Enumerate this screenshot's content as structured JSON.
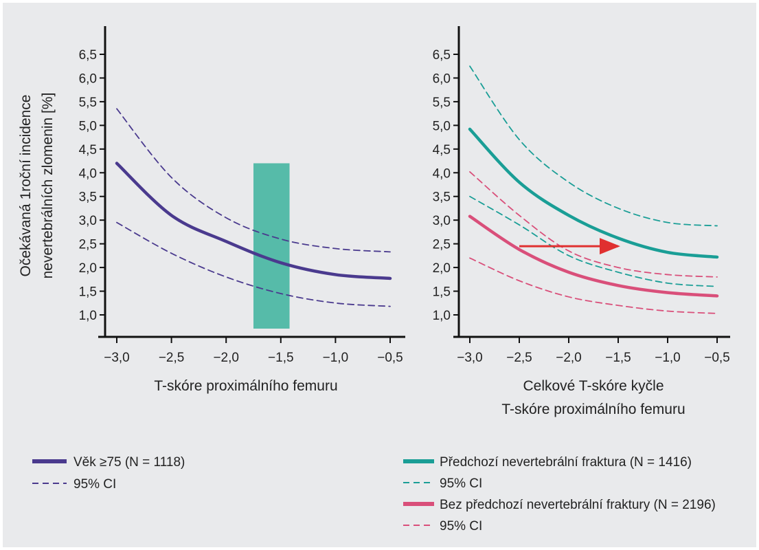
{
  "chart_data": [
    {
      "type": "line",
      "ylabel_lines": [
        "Očekávaná 1roční incidence",
        "nevertebrálních zlomenin [%]"
      ],
      "xlabel_lines": [
        "T-skóre proximálního femuru"
      ],
      "xlim": [
        -3.0,
        -0.5
      ],
      "ylim": [
        1.0,
        6.5
      ],
      "xticks": [
        "−3,0",
        "−2,5",
        "−2,0",
        "−1,5",
        "−1,0",
        "−0,5"
      ],
      "yticks": [
        "1,0",
        "1,5",
        "2,0",
        "2,5",
        "3,0",
        "3,5",
        "4,0",
        "4,5",
        "5,0",
        "5,5",
        "6,0",
        "6,5"
      ],
      "x": [
        -3.0,
        -2.5,
        -2.0,
        -1.5,
        -1.0,
        -0.5
      ],
      "series": [
        {
          "name": "Věk ≥75 (N = 1118)",
          "style": "solid",
          "color": "#4a3a8e",
          "values": [
            4.2,
            3.1,
            2.55,
            2.1,
            1.85,
            1.77
          ]
        },
        {
          "name": "95% CI",
          "style": "dashed",
          "color": "#4a3a8e",
          "values": [
            5.35,
            3.9,
            3.05,
            2.6,
            2.4,
            2.33
          ]
        },
        {
          "name": "95% CI",
          "style": "dashed",
          "color": "#4a3a8e",
          "values": [
            2.95,
            2.3,
            1.8,
            1.45,
            1.25,
            1.18
          ]
        }
      ],
      "highlight_band": {
        "x_from": -1.75,
        "x_to": -1.42,
        "y_to": 4.2,
        "color": "#56bba9"
      },
      "legend": [
        {
          "label": "Věk ≥75 (N = 1118)",
          "style": "solid",
          "color": "#4a3a8e"
        },
        {
          "label": "95% CI",
          "style": "dashed",
          "color": "#4a3a8e"
        }
      ]
    },
    {
      "type": "line",
      "xlabel_lines": [
        "Celkové T-skóre kyčle",
        "T-skóre proximálního femuru"
      ],
      "xlim": [
        -3.0,
        -0.5
      ],
      "ylim": [
        1.0,
        6.5
      ],
      "xticks": [
        "−3,0",
        "−2,5",
        "−2,0",
        "−1,5",
        "−1,0",
        "−0,5"
      ],
      "yticks": [
        "1,0",
        "1,5",
        "2,0",
        "2,5",
        "3,0",
        "3,5",
        "4,0",
        "4,5",
        "5,0",
        "5,5",
        "6,0",
        "6,5"
      ],
      "x": [
        -3.0,
        -2.5,
        -2.0,
        -1.5,
        -1.0,
        -0.5
      ],
      "series": [
        {
          "name": "Předchozí nevertebrální fraktura (N = 1416)",
          "style": "solid",
          "color": "#1a9e96",
          "values": [
            4.92,
            3.8,
            3.1,
            2.62,
            2.32,
            2.22
          ]
        },
        {
          "name": "95% CI",
          "style": "dashed",
          "color": "#1a9e96",
          "values": [
            6.25,
            4.7,
            3.8,
            3.25,
            2.95,
            2.88
          ]
        },
        {
          "name": "95% CI",
          "style": "dashed",
          "color": "#1a9e96",
          "values": [
            3.5,
            2.9,
            2.25,
            1.9,
            1.67,
            1.6
          ]
        },
        {
          "name": "Bez předchozí nevertebrální fraktury (N = 2196)",
          "style": "solid",
          "color": "#d94f7a",
          "values": [
            3.08,
            2.38,
            1.9,
            1.62,
            1.47,
            1.4
          ]
        },
        {
          "name": "95% CI",
          "style": "dashed",
          "color": "#d94f7a",
          "values": [
            4.02,
            3.1,
            2.35,
            2.0,
            1.85,
            1.8
          ]
        },
        {
          "name": "95% CI",
          "style": "dashed",
          "color": "#d94f7a",
          "values": [
            2.2,
            1.72,
            1.38,
            1.2,
            1.08,
            1.03
          ]
        }
      ],
      "arrow": {
        "x_from": -2.5,
        "x_to": -1.5,
        "y": 2.45,
        "color": "#e03030"
      },
      "legend": [
        {
          "label": "Předchozí nevertebrální fraktura (N = 1416)",
          "style": "solid",
          "color": "#1a9e96"
        },
        {
          "label": "95% CI",
          "style": "dashed",
          "color": "#1a9e96"
        },
        {
          "label": "Bez předchozí nevertebrální fraktury (N = 2196)",
          "style": "solid",
          "color": "#d94f7a"
        },
        {
          "label": "95% CI",
          "style": "dashed",
          "color": "#d94f7a"
        }
      ]
    }
  ]
}
